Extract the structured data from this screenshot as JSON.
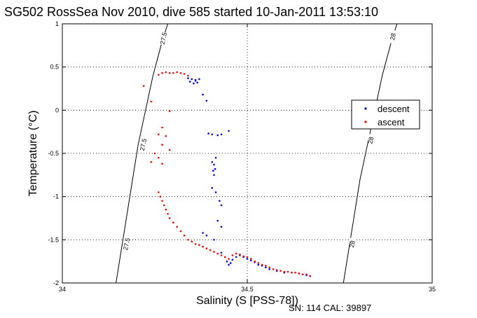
{
  "chart_data": {
    "type": "scatter",
    "title": "SG502 RossSea Nov 2010, dive 585 started 10-Jan-2011 13:53:10",
    "xlabel": "Salinity (S [PSS-78])",
    "ylabel": "Temperature (°C)",
    "xlim": [
      34,
      35
    ],
    "ylim": [
      -2,
      1
    ],
    "xticks": [
      34,
      34.5,
      35
    ],
    "xtick_labels": [
      "34",
      "34.5",
      "35"
    ],
    "yticks": [
      -2,
      -1.5,
      -1,
      -0.5,
      0,
      0.5,
      1
    ],
    "ytick_labels": [
      "-2",
      "-1.5",
      "-1",
      "-0.5",
      "0",
      "0.5",
      "1"
    ],
    "grid": true,
    "legend_position": "right",
    "colors": {
      "descent": "#0000ff",
      "ascent": "#ff0000"
    },
    "series": [
      {
        "name": "descent",
        "color": "#0000ff",
        "points": [
          [
            34.34,
            0.37
          ],
          [
            34.35,
            0.36
          ],
          [
            34.36,
            0.35
          ],
          [
            34.37,
            0.36
          ],
          [
            34.345,
            0.33
          ],
          [
            34.355,
            0.31
          ],
          [
            34.365,
            0.32
          ],
          [
            34.36,
            0.34
          ],
          [
            34.39,
            0.11
          ],
          [
            34.38,
            0.18
          ],
          [
            34.395,
            -0.27
          ],
          [
            34.405,
            -0.28
          ],
          [
            34.42,
            -0.29
          ],
          [
            34.45,
            -0.24
          ],
          [
            34.43,
            -0.28
          ],
          [
            34.405,
            -0.6
          ],
          [
            34.41,
            -0.63
          ],
          [
            34.415,
            -0.55
          ],
          [
            34.408,
            -0.7
          ],
          [
            34.413,
            -0.68
          ],
          [
            34.41,
            -0.75
          ],
          [
            34.405,
            -0.9
          ],
          [
            34.415,
            -0.95
          ],
          [
            34.425,
            -1.05
          ],
          [
            34.43,
            -1.1
          ],
          [
            34.38,
            -1.42
          ],
          [
            34.39,
            -1.45
          ],
          [
            34.41,
            -1.5
          ],
          [
            34.42,
            -1.28
          ],
          [
            34.43,
            -1.35
          ],
          [
            34.43,
            -1.65
          ],
          [
            34.44,
            -1.7
          ],
          [
            34.445,
            -1.75
          ],
          [
            34.45,
            -1.79
          ],
          [
            34.455,
            -1.77
          ],
          [
            34.46,
            -1.73
          ],
          [
            34.47,
            -1.7
          ],
          [
            34.48,
            -1.68
          ],
          [
            34.49,
            -1.7
          ],
          [
            34.5,
            -1.72
          ],
          [
            34.51,
            -1.74
          ],
          [
            34.52,
            -1.76
          ],
          [
            34.53,
            -1.79
          ],
          [
            34.54,
            -1.8
          ],
          [
            34.55,
            -1.82
          ],
          [
            34.56,
            -1.84
          ],
          [
            34.58,
            -1.86
          ],
          [
            34.6,
            -1.88
          ],
          [
            34.62,
            -1.88
          ],
          [
            34.64,
            -1.89
          ],
          [
            34.66,
            -1.91
          ],
          [
            34.67,
            -1.92
          ]
        ]
      },
      {
        "name": "ascent",
        "color": "#ff0000",
        "points": [
          [
            34.27,
            0.43
          ],
          [
            34.28,
            0.44
          ],
          [
            34.29,
            0.43
          ],
          [
            34.3,
            0.43
          ],
          [
            34.31,
            0.44
          ],
          [
            34.32,
            0.43
          ],
          [
            34.33,
            0.42
          ],
          [
            34.34,
            0.4
          ],
          [
            34.26,
            0.41
          ],
          [
            34.22,
            0.28
          ],
          [
            34.24,
            0.1
          ],
          [
            34.29,
            -0.01
          ],
          [
            34.27,
            -0.2
          ],
          [
            34.28,
            -0.3
          ],
          [
            34.26,
            -0.28
          ],
          [
            34.27,
            -0.4
          ],
          [
            34.29,
            -0.46
          ],
          [
            34.26,
            -0.55
          ],
          [
            34.24,
            -0.6
          ],
          [
            34.27,
            -0.62
          ],
          [
            34.25,
            -0.5
          ],
          [
            34.26,
            -0.95
          ],
          [
            34.265,
            -1.0
          ],
          [
            34.27,
            -1.05
          ],
          [
            34.275,
            -1.1
          ],
          [
            34.28,
            -1.15
          ],
          [
            34.285,
            -1.2
          ],
          [
            34.29,
            -1.25
          ],
          [
            34.3,
            -1.3
          ],
          [
            34.31,
            -1.35
          ],
          [
            34.32,
            -1.4
          ],
          [
            34.33,
            -1.45
          ],
          [
            34.34,
            -1.5
          ],
          [
            34.35,
            -1.52
          ],
          [
            34.36,
            -1.55
          ],
          [
            34.37,
            -1.56
          ],
          [
            34.38,
            -1.58
          ],
          [
            34.39,
            -1.6
          ],
          [
            34.4,
            -1.62
          ],
          [
            34.41,
            -1.64
          ],
          [
            34.42,
            -1.66
          ],
          [
            34.43,
            -1.68
          ],
          [
            34.44,
            -1.7
          ],
          [
            34.45,
            -1.72
          ],
          [
            34.46,
            -1.68
          ],
          [
            34.47,
            -1.66
          ],
          [
            34.48,
            -1.67
          ],
          [
            34.49,
            -1.69
          ],
          [
            34.5,
            -1.7
          ],
          [
            34.51,
            -1.72
          ],
          [
            34.52,
            -1.75
          ],
          [
            34.53,
            -1.77
          ],
          [
            34.54,
            -1.79
          ],
          [
            34.55,
            -1.8
          ],
          [
            34.56,
            -1.82
          ],
          [
            34.57,
            -1.84
          ],
          [
            34.58,
            -1.85
          ],
          [
            34.59,
            -1.86
          ],
          [
            34.6,
            -1.87
          ],
          [
            34.61,
            -1.87
          ],
          [
            34.62,
            -1.88
          ],
          [
            34.63,
            -1.88
          ],
          [
            34.64,
            -1.89
          ],
          [
            34.65,
            -1.9
          ],
          [
            34.66,
            -1.9
          ],
          [
            34.67,
            -1.92
          ]
        ]
      }
    ],
    "density_contours": [
      {
        "label": "27.5",
        "points": [
          [
            34.145,
            -2
          ],
          [
            34.16,
            -1.6
          ],
          [
            34.175,
            -1.2
          ],
          [
            34.19,
            -0.8
          ],
          [
            34.205,
            -0.4
          ],
          [
            34.225,
            0.0
          ],
          [
            34.245,
            0.4
          ],
          [
            34.27,
            0.8
          ],
          [
            34.285,
            1.0
          ]
        ],
        "label_positions": [
          [
            34.175,
            -1.55
          ],
          [
            34.22,
            -0.4
          ],
          [
            34.275,
            0.83
          ]
        ]
      },
      {
        "label": "28",
        "points": [
          [
            34.76,
            -2
          ],
          [
            34.775,
            -1.6
          ],
          [
            34.79,
            -1.2
          ],
          [
            34.805,
            -0.8
          ],
          [
            34.825,
            -0.4
          ],
          [
            34.845,
            0.0
          ],
          [
            34.865,
            0.4
          ],
          [
            34.89,
            0.8
          ],
          [
            34.905,
            1.0
          ]
        ],
        "label_positions": [
          [
            34.785,
            -1.55
          ],
          [
            34.835,
            -0.35
          ],
          [
            34.895,
            0.85
          ]
        ]
      }
    ],
    "legend": [
      "descent",
      "ascent"
    ]
  },
  "footer": {
    "text": "SN: 114  CAL: 39897"
  }
}
